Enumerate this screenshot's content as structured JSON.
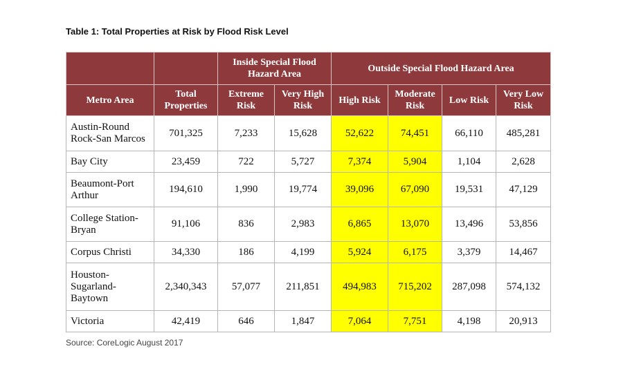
{
  "title": "Table 1: Total Properties at Risk by Flood Risk Level",
  "header": {
    "groups": [
      "Inside Special Flood Hazard Area",
      "Outside Special Flood Hazard Area"
    ],
    "columns": [
      "Metro Area",
      "Total Properties",
      "Extreme Risk",
      "Very High Risk",
      "High Risk",
      "Moderate Risk",
      "Low Risk",
      "Very Low Risk"
    ]
  },
  "table": {
    "rows": [
      [
        "Austin-Round Rock-San Marcos",
        "701,325",
        "7,233",
        "15,628",
        "52,622",
        "74,451",
        "66,110",
        "485,281"
      ],
      [
        "Bay City",
        "23,459",
        "722",
        "5,727",
        "7,374",
        "5,904",
        "1,104",
        "2,628"
      ],
      [
        "Beaumont-Port Arthur",
        "194,610",
        "1,990",
        "19,774",
        "39,096",
        "67,090",
        "19,531",
        "47,129"
      ],
      [
        "College Station-Bryan",
        "91,106",
        "836",
        "2,983",
        "6,865",
        "13,070",
        "13,496",
        "53,856"
      ],
      [
        "Corpus Christi",
        "34,330",
        "186",
        "4,199",
        "5,924",
        "6,175",
        "3,379",
        "14,467"
      ],
      [
        "Houston-Sugarland-Baytown",
        "2,340,343",
        "57,077",
        "211,851",
        "494,983",
        "715,202",
        "287,098",
        "574,132"
      ],
      [
        "Victoria",
        "42,419",
        "646",
        "1,847",
        "7,064",
        "7,751",
        "4,198",
        "20,913"
      ]
    ]
  },
  "source": "Source: CoreLogic August 2017"
}
